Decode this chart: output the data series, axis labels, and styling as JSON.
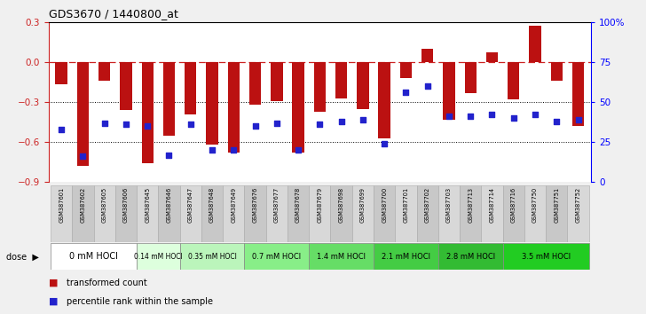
{
  "title": "GDS3670 / 1440800_at",
  "samples": [
    "GSM387601",
    "GSM387602",
    "GSM387605",
    "GSM387606",
    "GSM387645",
    "GSM387646",
    "GSM387647",
    "GSM387648",
    "GSM387649",
    "GSM387676",
    "GSM387677",
    "GSM387678",
    "GSM387679",
    "GSM387698",
    "GSM387699",
    "GSM387700",
    "GSM387701",
    "GSM387702",
    "GSM387703",
    "GSM387713",
    "GSM387714",
    "GSM387716",
    "GSM387750",
    "GSM387751",
    "GSM387752"
  ],
  "red_values": [
    -0.17,
    -0.78,
    -0.14,
    -0.36,
    -0.76,
    -0.55,
    -0.39,
    -0.62,
    -0.68,
    -0.32,
    -0.29,
    -0.68,
    -0.37,
    -0.27,
    -0.35,
    -0.57,
    -0.12,
    0.1,
    -0.43,
    -0.23,
    0.07,
    -0.28,
    0.27,
    -0.14,
    -0.48
  ],
  "blue_values": [
    33,
    16,
    37,
    36,
    35,
    17,
    36,
    20,
    20,
    35,
    37,
    20,
    36,
    38,
    39,
    24,
    56,
    60,
    41,
    41,
    42,
    40,
    42,
    38,
    39
  ],
  "dose_groups": [
    {
      "label": "0 mM HOCl",
      "start": 0,
      "end": 4,
      "color": "#ffffff",
      "font_size": 7
    },
    {
      "label": "0.14 mM HOCl",
      "start": 4,
      "end": 6,
      "color": "#ddffdd",
      "font_size": 5.5
    },
    {
      "label": "0.35 mM HOCl",
      "start": 6,
      "end": 9,
      "color": "#bbf5bb",
      "font_size": 5.5
    },
    {
      "label": "0.7 mM HOCl",
      "start": 9,
      "end": 12,
      "color": "#88ee88",
      "font_size": 6
    },
    {
      "label": "1.4 mM HOCl",
      "start": 12,
      "end": 15,
      "color": "#66dd66",
      "font_size": 6
    },
    {
      "label": "2.1 mM HOCl",
      "start": 15,
      "end": 18,
      "color": "#44cc44",
      "font_size": 6
    },
    {
      "label": "2.8 mM HOCl",
      "start": 18,
      "end": 21,
      "color": "#33bb33",
      "font_size": 6
    },
    {
      "label": "3.5 mM HOCl",
      "start": 21,
      "end": 25,
      "color": "#22cc22",
      "font_size": 6
    }
  ],
  "ylim_left": [
    -0.9,
    0.3
  ],
  "ylim_right": [
    0,
    100
  ],
  "yticks_left": [
    -0.9,
    -0.6,
    -0.3,
    0.0,
    0.3
  ],
  "yticks_right": [
    0,
    25,
    50,
    75,
    100
  ],
  "ytick_labels_right": [
    "0",
    "25",
    "50",
    "75",
    "100%"
  ],
  "bar_color": "#bb1111",
  "blue_color": "#2222cc",
  "zero_line_color": "#cc2222",
  "bg_color": "#ffffff",
  "legend_red": "transformed count",
  "legend_blue": "percentile rank within the sample",
  "fig_width": 7.28,
  "fig_height": 3.54,
  "dpi": 100
}
